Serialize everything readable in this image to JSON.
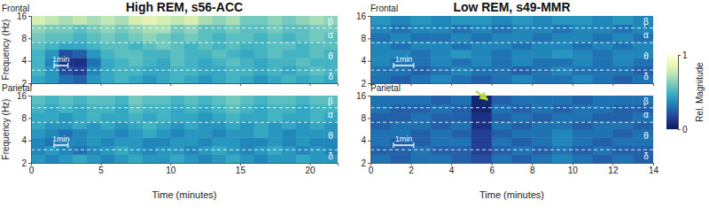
{
  "chart_data": [
    {
      "type": "heatmap",
      "title": "High REM, s56-ACC",
      "panel_label": "Frontal",
      "ylabel": "Frequency (Hz)",
      "xlim": [
        0,
        22
      ],
      "xticks": [
        0,
        5,
        10,
        15,
        20
      ],
      "ylim": [
        2,
        16
      ],
      "yticks": [
        2,
        4,
        8,
        16
      ],
      "log": "y",
      "tick_labels": "y",
      "x_edges": [
        0,
        1,
        2,
        3,
        4,
        5,
        6,
        7,
        8,
        9,
        10,
        11,
        12,
        13,
        14,
        15,
        16,
        17,
        18,
        19,
        20,
        21,
        22
      ],
      "y_edges": [
        2,
        2.6,
        3.4,
        4.4,
        5.7,
        7.3,
        9.5,
        12.3,
        16
      ],
      "z": [
        [
          0.45,
          0.4,
          0.3,
          0.25,
          0.4,
          0.45,
          0.5,
          0.45,
          0.4,
          0.45,
          0.5,
          0.45,
          0.4,
          0.45,
          0.5,
          0.45,
          0.4,
          0.45,
          0.5,
          0.45,
          0.5,
          0.45
        ],
        [
          0.5,
          0.4,
          0.2,
          0.15,
          0.35,
          0.45,
          0.5,
          0.5,
          0.45,
          0.45,
          0.5,
          0.5,
          0.45,
          0.45,
          0.5,
          0.5,
          0.45,
          0.5,
          0.45,
          0.5,
          0.55,
          0.5
        ],
        [
          0.5,
          0.35,
          0.1,
          0.1,
          0.3,
          0.45,
          0.5,
          0.55,
          0.5,
          0.45,
          0.55,
          0.5,
          0.45,
          0.5,
          0.55,
          0.5,
          0.45,
          0.5,
          0.5,
          0.55,
          0.5,
          0.5
        ],
        [
          0.5,
          0.4,
          0.2,
          0.25,
          0.4,
          0.5,
          0.55,
          0.55,
          0.5,
          0.5,
          0.55,
          0.5,
          0.5,
          0.55,
          0.5,
          0.45,
          0.5,
          0.55,
          0.5,
          0.5,
          0.55,
          0.5
        ],
        [
          0.55,
          0.5,
          0.45,
          0.45,
          0.5,
          0.55,
          0.55,
          0.5,
          0.55,
          0.6,
          0.55,
          0.5,
          0.55,
          0.5,
          0.55,
          0.5,
          0.5,
          0.55,
          0.55,
          0.5,
          0.55,
          0.55
        ],
        [
          0.6,
          0.55,
          0.55,
          0.5,
          0.55,
          0.6,
          0.55,
          0.6,
          0.65,
          0.6,
          0.55,
          0.6,
          0.55,
          0.5,
          0.55,
          0.55,
          0.5,
          0.55,
          0.5,
          0.55,
          0.6,
          0.55
        ],
        [
          0.65,
          0.6,
          0.6,
          0.55,
          0.6,
          0.65,
          0.6,
          0.65,
          0.7,
          0.7,
          0.6,
          0.65,
          0.55,
          0.55,
          0.6,
          0.55,
          0.55,
          0.6,
          0.55,
          0.55,
          0.6,
          0.6
        ],
        [
          0.8,
          0.75,
          0.7,
          0.75,
          0.7,
          0.75,
          0.7,
          0.8,
          0.85,
          0.8,
          0.75,
          0.8,
          0.7,
          0.65,
          0.7,
          0.6,
          0.6,
          0.65,
          0.6,
          0.65,
          0.7,
          0.65
        ]
      ],
      "band_edges": [
        3,
        7,
        11
      ],
      "band_labels": [
        "δ",
        "θ",
        "α",
        "β"
      ],
      "scale_bar": {
        "label": "1min",
        "length": 1
      }
    },
    {
      "type": "heatmap",
      "title": "Low REM, s49-MMR",
      "panel_label": "Frontal",
      "xlim": [
        0,
        14
      ],
      "xticks": [
        0,
        2,
        4,
        6,
        8,
        10,
        12,
        14
      ],
      "ylim": [
        2,
        16
      ],
      "yticks": [
        2,
        4,
        8,
        16
      ],
      "log": "y",
      "tick_labels": "y",
      "x_edges": [
        0,
        1,
        2,
        3,
        4,
        5,
        6,
        7,
        8,
        9,
        10,
        11,
        12,
        13,
        14
      ],
      "y_edges": [
        2,
        2.6,
        3.4,
        4.4,
        5.7,
        7.3,
        9.5,
        12.3,
        16
      ],
      "z": [
        [
          0.3,
          0.25,
          0.3,
          0.35,
          0.3,
          0.25,
          0.3,
          0.35,
          0.3,
          0.3,
          0.35,
          0.3,
          0.25,
          0.3
        ],
        [
          0.3,
          0.3,
          0.25,
          0.3,
          0.35,
          0.3,
          0.3,
          0.25,
          0.3,
          0.35,
          0.3,
          0.3,
          0.3,
          0.25
        ],
        [
          0.35,
          0.3,
          0.3,
          0.35,
          0.3,
          0.35,
          0.3,
          0.35,
          0.3,
          0.3,
          0.35,
          0.3,
          0.35,
          0.3
        ],
        [
          0.35,
          0.35,
          0.3,
          0.35,
          0.4,
          0.35,
          0.3,
          0.35,
          0.35,
          0.4,
          0.35,
          0.3,
          0.35,
          0.35
        ],
        [
          0.35,
          0.3,
          0.35,
          0.35,
          0.3,
          0.35,
          0.35,
          0.3,
          0.35,
          0.35,
          0.3,
          0.35,
          0.3,
          0.35
        ],
        [
          0.3,
          0.35,
          0.3,
          0.3,
          0.35,
          0.3,
          0.35,
          0.35,
          0.3,
          0.35,
          0.35,
          0.3,
          0.35,
          0.3
        ],
        [
          0.35,
          0.3,
          0.35,
          0.35,
          0.3,
          0.35,
          0.3,
          0.35,
          0.35,
          0.3,
          0.35,
          0.35,
          0.3,
          0.35
        ],
        [
          0.4,
          0.35,
          0.4,
          0.35,
          0.4,
          0.4,
          0.35,
          0.4,
          0.35,
          0.4,
          0.4,
          0.35,
          0.4,
          0.35
        ]
      ],
      "band_edges": [
        3,
        7,
        11
      ],
      "band_labels": [
        "δ",
        "θ",
        "α",
        "β"
      ],
      "scale_bar": {
        "label": "1min",
        "length": 1
      }
    },
    {
      "type": "heatmap",
      "panel_label": "Parietal",
      "ylabel": "Frequency (Hz)",
      "xlabel": "Time (minutes)",
      "xlim": [
        0,
        22
      ],
      "xticks": [
        0,
        5,
        10,
        15,
        20
      ],
      "ylim": [
        2,
        16
      ],
      "yticks": [
        2,
        4,
        8,
        16
      ],
      "log": "y",
      "x_edges": [
        0,
        1,
        2,
        3,
        4,
        5,
        6,
        7,
        8,
        9,
        10,
        11,
        12,
        13,
        14,
        15,
        16,
        17,
        18,
        19,
        20,
        21,
        22
      ],
      "y_edges": [
        2,
        2.6,
        3.4,
        4.4,
        5.7,
        7.3,
        9.5,
        12.3,
        16
      ],
      "z": [
        [
          0.4,
          0.35,
          0.4,
          0.45,
          0.4,
          0.35,
          0.4,
          0.45,
          0.4,
          0.4,
          0.45,
          0.4,
          0.35,
          0.4,
          0.45,
          0.4,
          0.35,
          0.4,
          0.4,
          0.45,
          0.4,
          0.4
        ],
        [
          0.35,
          0.4,
          0.35,
          0.3,
          0.35,
          0.4,
          0.45,
          0.4,
          0.35,
          0.4,
          0.4,
          0.35,
          0.4,
          0.45,
          0.4,
          0.35,
          0.4,
          0.45,
          0.4,
          0.35,
          0.4,
          0.35
        ],
        [
          0.35,
          0.3,
          0.35,
          0.35,
          0.4,
          0.35,
          0.4,
          0.4,
          0.35,
          0.35,
          0.4,
          0.4,
          0.35,
          0.4,
          0.4,
          0.35,
          0.35,
          0.4,
          0.35,
          0.4,
          0.35,
          0.35
        ],
        [
          0.4,
          0.35,
          0.3,
          0.35,
          0.4,
          0.4,
          0.35,
          0.4,
          0.45,
          0.4,
          0.35,
          0.4,
          0.4,
          0.35,
          0.4,
          0.4,
          0.45,
          0.4,
          0.35,
          0.4,
          0.4,
          0.4
        ],
        [
          0.45,
          0.4,
          0.4,
          0.45,
          0.4,
          0.45,
          0.4,
          0.45,
          0.5,
          0.45,
          0.4,
          0.45,
          0.4,
          0.4,
          0.45,
          0.4,
          0.45,
          0.4,
          0.45,
          0.4,
          0.45,
          0.4
        ],
        [
          0.45,
          0.45,
          0.4,
          0.45,
          0.5,
          0.45,
          0.45,
          0.5,
          0.45,
          0.5,
          0.45,
          0.45,
          0.4,
          0.45,
          0.5,
          0.45,
          0.45,
          0.5,
          0.45,
          0.45,
          0.5,
          0.45
        ],
        [
          0.5,
          0.45,
          0.5,
          0.45,
          0.5,
          0.5,
          0.45,
          0.55,
          0.5,
          0.5,
          0.45,
          0.5,
          0.45,
          0.5,
          0.55,
          0.5,
          0.45,
          0.5,
          0.5,
          0.45,
          0.5,
          0.5
        ],
        [
          0.55,
          0.5,
          0.55,
          0.5,
          0.55,
          0.55,
          0.5,
          0.6,
          0.55,
          0.55,
          0.5,
          0.55,
          0.5,
          0.55,
          0.6,
          0.55,
          0.5,
          0.55,
          0.55,
          0.5,
          0.55,
          0.55
        ]
      ],
      "band_edges": [
        3,
        7,
        11
      ],
      "band_labels": [
        "δ",
        "θ",
        "α",
        "β"
      ],
      "scale_bar": {
        "label": "1min",
        "length": 1
      }
    },
    {
      "type": "heatmap",
      "panel_label": "Parietal",
      "xlabel": "Time (minutes)",
      "xlim": [
        0,
        14
      ],
      "xticks": [
        0,
        2,
        4,
        6,
        8,
        10,
        12,
        14
      ],
      "ylim": [
        2,
        16
      ],
      "yticks": [
        2,
        4,
        8,
        16
      ],
      "log": "y",
      "x_edges": [
        0,
        1,
        2,
        3,
        4,
        5,
        6,
        7,
        8,
        9,
        10,
        11,
        12,
        13,
        14
      ],
      "y_edges": [
        2,
        2.6,
        3.4,
        4.4,
        5.7,
        7.3,
        9.5,
        12.3,
        16
      ],
      "z": [
        [
          0.3,
          0.25,
          0.3,
          0.3,
          0.25,
          0.2,
          0.3,
          0.25,
          0.3,
          0.35,
          0.3,
          0.25,
          0.3,
          0.25
        ],
        [
          0.25,
          0.25,
          0.3,
          0.25,
          0.25,
          0.15,
          0.25,
          0.3,
          0.25,
          0.3,
          0.25,
          0.3,
          0.25,
          0.25
        ],
        [
          0.3,
          0.25,
          0.25,
          0.3,
          0.3,
          0.15,
          0.3,
          0.25,
          0.3,
          0.35,
          0.3,
          0.25,
          0.3,
          0.3
        ],
        [
          0.3,
          0.3,
          0.25,
          0.3,
          0.25,
          0.15,
          0.25,
          0.3,
          0.3,
          0.35,
          0.3,
          0.3,
          0.25,
          0.3
        ],
        [
          0.25,
          0.3,
          0.3,
          0.25,
          0.3,
          0.1,
          0.3,
          0.25,
          0.3,
          0.3,
          0.25,
          0.3,
          0.3,
          0.25
        ],
        [
          0.25,
          0.25,
          0.3,
          0.25,
          0.25,
          0.1,
          0.25,
          0.3,
          0.25,
          0.3,
          0.3,
          0.25,
          0.25,
          0.3
        ],
        [
          0.3,
          0.25,
          0.25,
          0.3,
          0.25,
          0.05,
          0.3,
          0.25,
          0.3,
          0.25,
          0.3,
          0.3,
          0.25,
          0.25
        ],
        [
          0.3,
          0.3,
          0.3,
          0.25,
          0.3,
          0.05,
          0.25,
          0.3,
          0.3,
          0.3,
          0.25,
          0.3,
          0.3,
          0.3
        ]
      ],
      "band_edges": [
        3,
        7,
        11
      ],
      "band_labels": [
        "δ",
        "θ",
        "α",
        "β"
      ],
      "scale_bar": {
        "label": "1min",
        "length": 1
      },
      "arrow_at": {
        "x": 5.8,
        "y": 14
      }
    }
  ],
  "colorbar": {
    "label": "Rel. Magnitude",
    "range": [
      0,
      1
    ],
    "ticks": [
      0,
      1
    ]
  }
}
